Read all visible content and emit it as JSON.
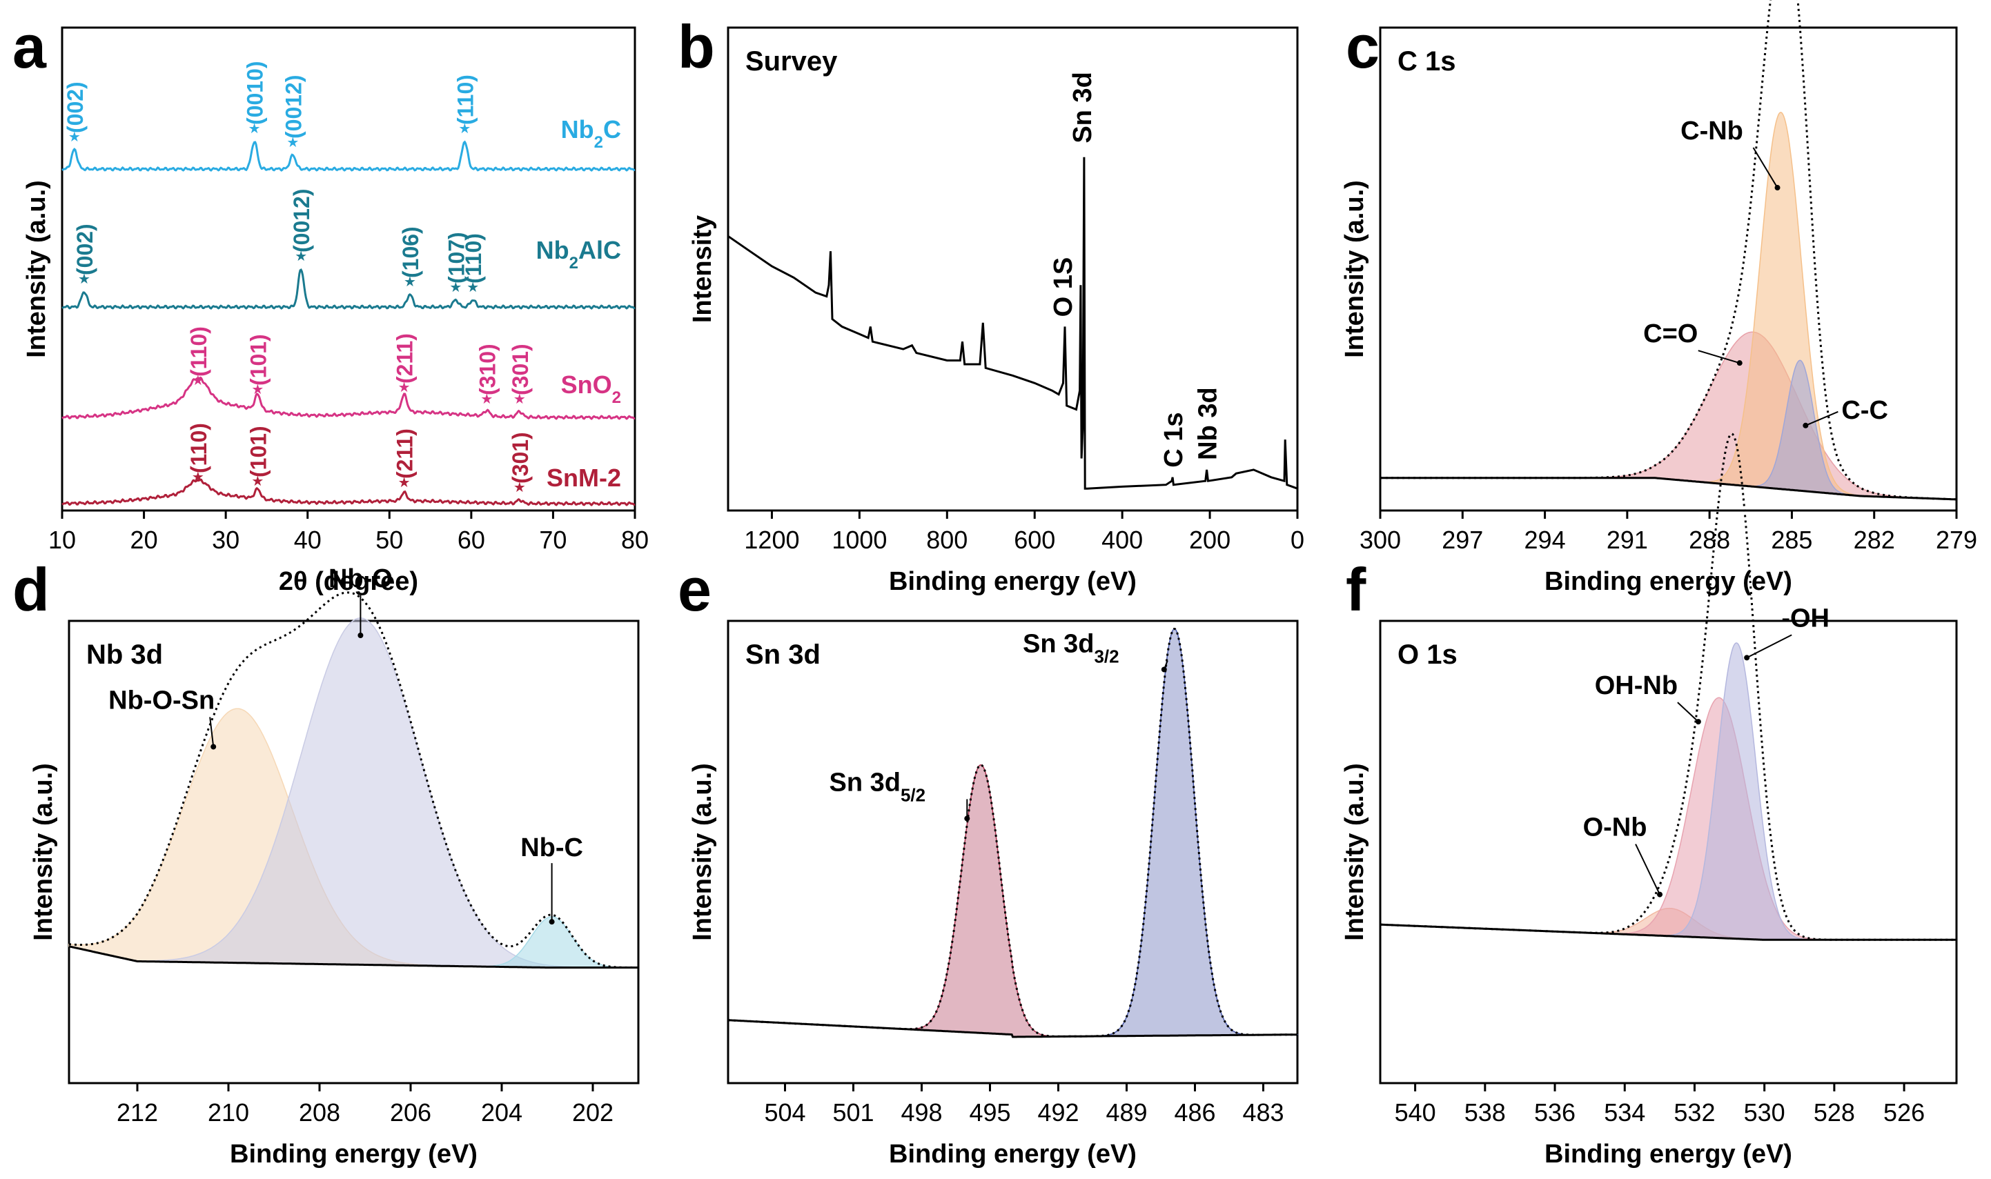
{
  "figure": {
    "panels": [
      "a",
      "b",
      "c",
      "d",
      "e",
      "f"
    ]
  },
  "chart_data": [
    {
      "panel": "a",
      "type": "line",
      "title": "",
      "xlabel": "2θ (degree)",
      "ylabel": "Intensity (a.u.)",
      "xlim": [
        10,
        80
      ],
      "xticks": [
        10,
        20,
        30,
        40,
        50,
        60,
        70,
        80
      ],
      "series": [
        {
          "name": "Nb",
          "sub": "2",
          "suffix": "C",
          "color": "#29abe2",
          "peaks": [
            {
              "x": 11.5,
              "h": 28
            },
            {
              "x": 33.5,
              "h": 40
            },
            {
              "x": 38.2,
              "h": 20
            },
            {
              "x": 59.2,
              "h": 40
            }
          ],
          "labels": [
            {
              "x": 11.5,
              "text": "(002)"
            },
            {
              "x": 33.5,
              "text": "(0010)"
            },
            {
              "x": 38.2,
              "text": "(0012)"
            },
            {
              "x": 59.2,
              "text": "(110)"
            }
          ]
        },
        {
          "name": "Nb",
          "sub": "2",
          "suffix": "AlC",
          "color": "#1a7a8f",
          "peaks": [
            {
              "x": 12.7,
              "h": 22
            },
            {
              "x": 39.2,
              "h": 55
            },
            {
              "x": 52.5,
              "h": 18
            },
            {
              "x": 58.1,
              "h": 10
            },
            {
              "x": 60.2,
              "h": 10
            }
          ],
          "labels": [
            {
              "x": 12.7,
              "text": "(002)"
            },
            {
              "x": 39.2,
              "text": "(0012)"
            },
            {
              "x": 52.5,
              "text": "(106)"
            },
            {
              "x": 58.1,
              "text": "(107)"
            },
            {
              "x": 60.2,
              "text": "(110)"
            }
          ]
        },
        {
          "name": "SnO",
          "sub": "2",
          "suffix": "",
          "color": "#d63384",
          "peaks": [
            {
              "x": 26.6,
              "h": 35
            },
            {
              "x": 33.9,
              "h": 22
            },
            {
              "x": 51.8,
              "h": 25
            },
            {
              "x": 61.9,
              "h": 8
            },
            {
              "x": 65.9,
              "h": 8
            }
          ],
          "labels": [
            {
              "x": 26.6,
              "text": "(110)"
            },
            {
              "x": 33.9,
              "text": "(101)"
            },
            {
              "x": 51.8,
              "text": "(211)"
            },
            {
              "x": 61.9,
              "text": "(310)"
            },
            {
              "x": 65.9,
              "text": "(301)"
            }
          ]
        },
        {
          "name": "SnM-2",
          "sub": "",
          "suffix": "",
          "color": "#b0203a",
          "peaks": [
            {
              "x": 26.6,
              "h": 20
            },
            {
              "x": 33.9,
              "h": 14
            },
            {
              "x": 51.8,
              "h": 12
            },
            {
              "x": 65.9,
              "h": 5
            }
          ],
          "labels": [
            {
              "x": 26.6,
              "text": "(110)"
            },
            {
              "x": 33.9,
              "text": "(101)"
            },
            {
              "x": 51.8,
              "text": "(211)"
            },
            {
              "x": 65.9,
              "text": "(301)"
            }
          ]
        }
      ]
    },
    {
      "panel": "b",
      "type": "line",
      "title": "Survey",
      "xlabel": "Binding energy (eV)",
      "ylabel": "Intensity",
      "xlim": [
        1300,
        0
      ],
      "xticks": [
        1200,
        1000,
        800,
        600,
        400,
        200,
        0
      ],
      "annotations": [
        {
          "text": "Sn 3d",
          "x": 487
        },
        {
          "text": "O 1S",
          "x": 531
        },
        {
          "text": "C 1s",
          "x": 285
        },
        {
          "text": "Nb 3d",
          "x": 207
        }
      ]
    },
    {
      "panel": "c",
      "type": "area",
      "title": "C 1s",
      "xlabel": "Binding energy (eV)",
      "ylabel": "Intensity (a.u.)",
      "xlim": [
        300,
        279
      ],
      "xticks": [
        300,
        297,
        294,
        291,
        288,
        285,
        282,
        279
      ],
      "components": [
        {
          "name": "C=O",
          "center": 286.4,
          "height": 0.32,
          "width": 1.6,
          "color": "#e8a0a8"
        },
        {
          "name": "C-Nb",
          "center": 285.4,
          "height": 0.78,
          "width": 0.75,
          "color": "#f5c08a"
        },
        {
          "name": "C-C",
          "center": 284.7,
          "height": 0.27,
          "width": 0.5,
          "color": "#9fa6d8"
        }
      ]
    },
    {
      "panel": "d",
      "type": "area",
      "title": "Nb 3d",
      "xlabel": "Binding energy (eV)",
      "ylabel": "Intensity (a.u.)",
      "xlim": [
        213.5,
        201
      ],
      "xticks": [
        212,
        210,
        208,
        206,
        204,
        202
      ],
      "components": [
        {
          "name": "Nb-O-Sn",
          "center": 209.8,
          "height": 0.55,
          "width": 1.2,
          "color": "#f6d8b6"
        },
        {
          "name": "Nb-O",
          "center": 207.1,
          "height": 0.75,
          "width": 1.3,
          "color": "#c9cbe4"
        },
        {
          "name": "Nb-C",
          "center": 202.9,
          "height": 0.11,
          "width": 0.45,
          "color": "#a8dbe8"
        }
      ]
    },
    {
      "panel": "e",
      "type": "area",
      "title": "Sn 3d",
      "xlabel": "Binding energy (eV)",
      "ylabel": "Intensity (a.u.)",
      "xlim": [
        506.5,
        481.5
      ],
      "xticks": [
        504,
        501,
        498,
        495,
        492,
        489,
        486,
        483
      ],
      "components": [
        {
          "name": "Sn 3d",
          "sub": "5/2",
          "center": 495.4,
          "height": 0.58,
          "width": 0.85,
          "color": "#a8324f"
        },
        {
          "name": "Sn 3d",
          "sub": "3/2",
          "center": 486.9,
          "height": 0.88,
          "width": 0.85,
          "color": "#4a5aa8"
        }
      ]
    },
    {
      "panel": "f",
      "type": "area",
      "title": "O 1s",
      "xlabel": "Binding energy (eV)",
      "ylabel": "Intensity (a.u.)",
      "xlim": [
        541,
        524.5
      ],
      "xticks": [
        540,
        538,
        536,
        534,
        532,
        530,
        528,
        526
      ],
      "components": [
        {
          "name": "O-Nb",
          "center": 532.7,
          "height": 0.06,
          "width": 0.7,
          "color": "#f2b8a0"
        },
        {
          "name": "OH-Nb",
          "center": 531.3,
          "height": 0.52,
          "width": 0.8,
          "color": "#e8a3b0"
        },
        {
          "name": "-OH",
          "center": 530.8,
          "height": 0.64,
          "width": 0.55,
          "color": "#b4b7de"
        }
      ]
    }
  ]
}
